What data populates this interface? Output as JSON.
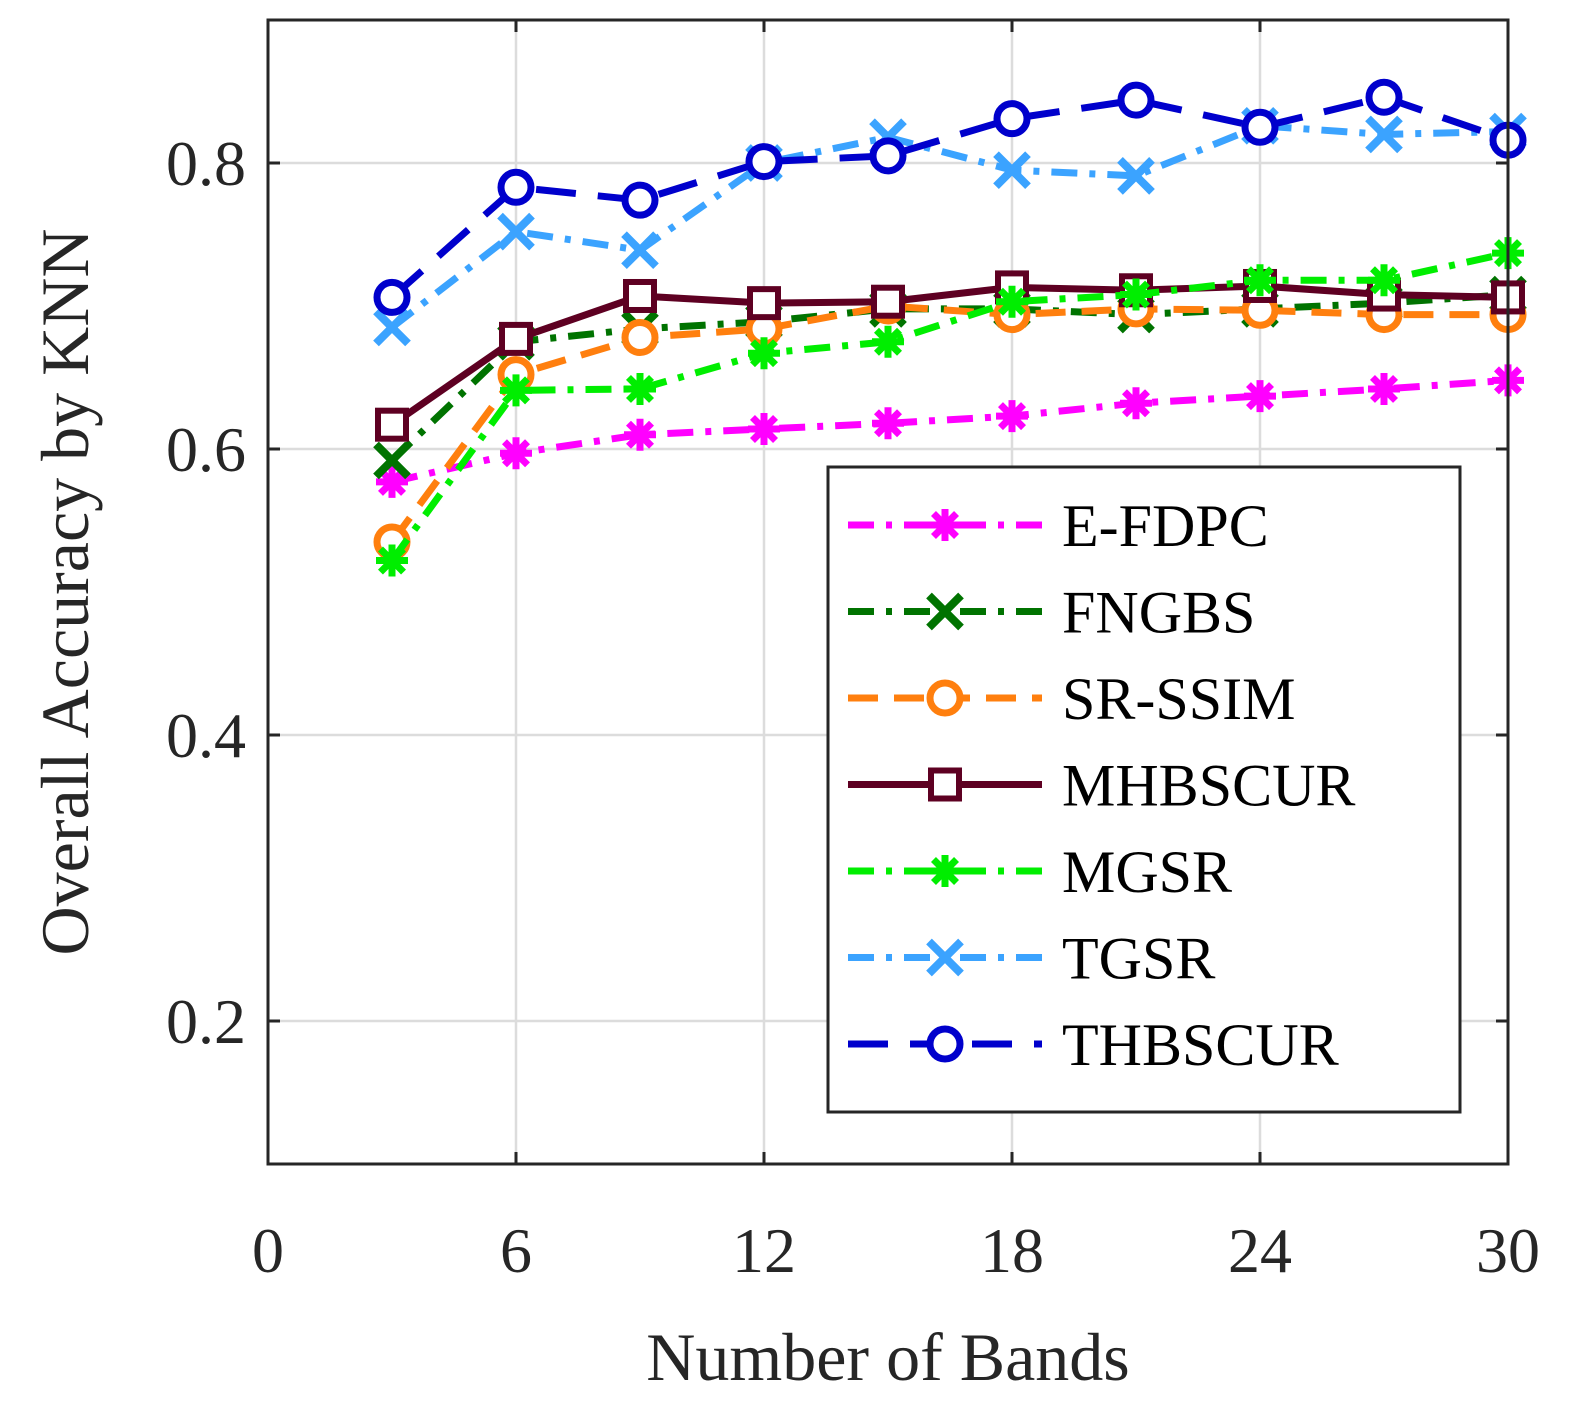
{
  "chart_data": {
    "type": "line",
    "xlabel": "Number of Bands",
    "ylabel": "Overall Accuracy by KNN",
    "xlim": [
      0,
      30
    ],
    "ylim": [
      0.1,
      0.9
    ],
    "xticks": [
      0,
      6,
      12,
      18,
      24,
      30
    ],
    "yticks": [
      0.2,
      0.4,
      0.6,
      0.8
    ],
    "xtick_labels": [
      "0",
      "6",
      "12",
      "18",
      "24",
      "30"
    ],
    "ytick_labels": [
      "0.2",
      "0.4",
      "0.6",
      "0.8"
    ],
    "grid": true,
    "legend_position": "bottom-right",
    "x": [
      3,
      6,
      9,
      12,
      15,
      18,
      21,
      24,
      27,
      30
    ],
    "series": [
      {
        "name": "E-FDPC",
        "color": "#ff00ff",
        "dash": "dashdot",
        "marker": "asterisk",
        "values": [
          0.577,
          0.597,
          0.61,
          0.614,
          0.618,
          0.623,
          0.632,
          0.637,
          0.642,
          0.648
        ]
      },
      {
        "name": "FNGBS",
        "color": "#007300",
        "dash": "dashdot",
        "marker": "x",
        "values": [
          0.592,
          0.675,
          0.684,
          0.689,
          0.698,
          0.698,
          0.694,
          0.698,
          0.702,
          0.708
        ]
      },
      {
        "name": "SR-SSIM",
        "color": "#ff7f0e",
        "dash": "dashed",
        "marker": "circle",
        "values": [
          0.535,
          0.652,
          0.678,
          0.684,
          0.7,
          0.694,
          0.698,
          0.697,
          0.694,
          0.694
        ]
      },
      {
        "name": "MHBSCUR",
        "color": "#5e0022",
        "dash": "solid",
        "marker": "square",
        "values": [
          0.617,
          0.677,
          0.707,
          0.702,
          0.703,
          0.713,
          0.711,
          0.714,
          0.708,
          0.706
        ]
      },
      {
        "name": "MGSR",
        "color": "#00ee00",
        "dash": "dashdot",
        "marker": "asterisk",
        "values": [
          0.522,
          0.641,
          0.642,
          0.667,
          0.675,
          0.703,
          0.708,
          0.718,
          0.718,
          0.737
        ]
      },
      {
        "name": "TGSR",
        "color": "#3ba3ff",
        "dash": "dashdot",
        "marker": "x",
        "values": [
          0.685,
          0.752,
          0.739,
          0.8,
          0.818,
          0.795,
          0.791,
          0.826,
          0.82,
          0.822
        ]
      },
      {
        "name": "THBSCUR",
        "color": "#0000cc",
        "dash": "longdash",
        "marker": "circle",
        "values": [
          0.706,
          0.783,
          0.774,
          0.801,
          0.805,
          0.831,
          0.844,
          0.825,
          0.846,
          0.816
        ]
      }
    ]
  }
}
